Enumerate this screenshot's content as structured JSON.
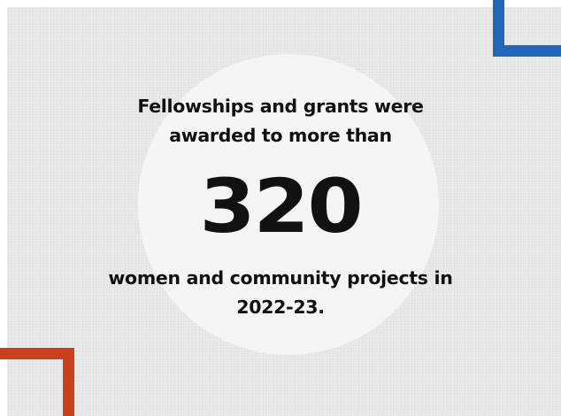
{
  "statistic": {
    "intro_line_1": "Fellowships and grants were",
    "intro_line_2": "awarded to more than",
    "number": "320",
    "outro_line_1": "women and community projects in",
    "outro_line_2": "2022-23."
  },
  "colors": {
    "background": "#e8e8e8",
    "circle": "#f5f5f5",
    "text": "#111111",
    "accent_blue": "#2266b8",
    "accent_orange": "#c8401c"
  }
}
